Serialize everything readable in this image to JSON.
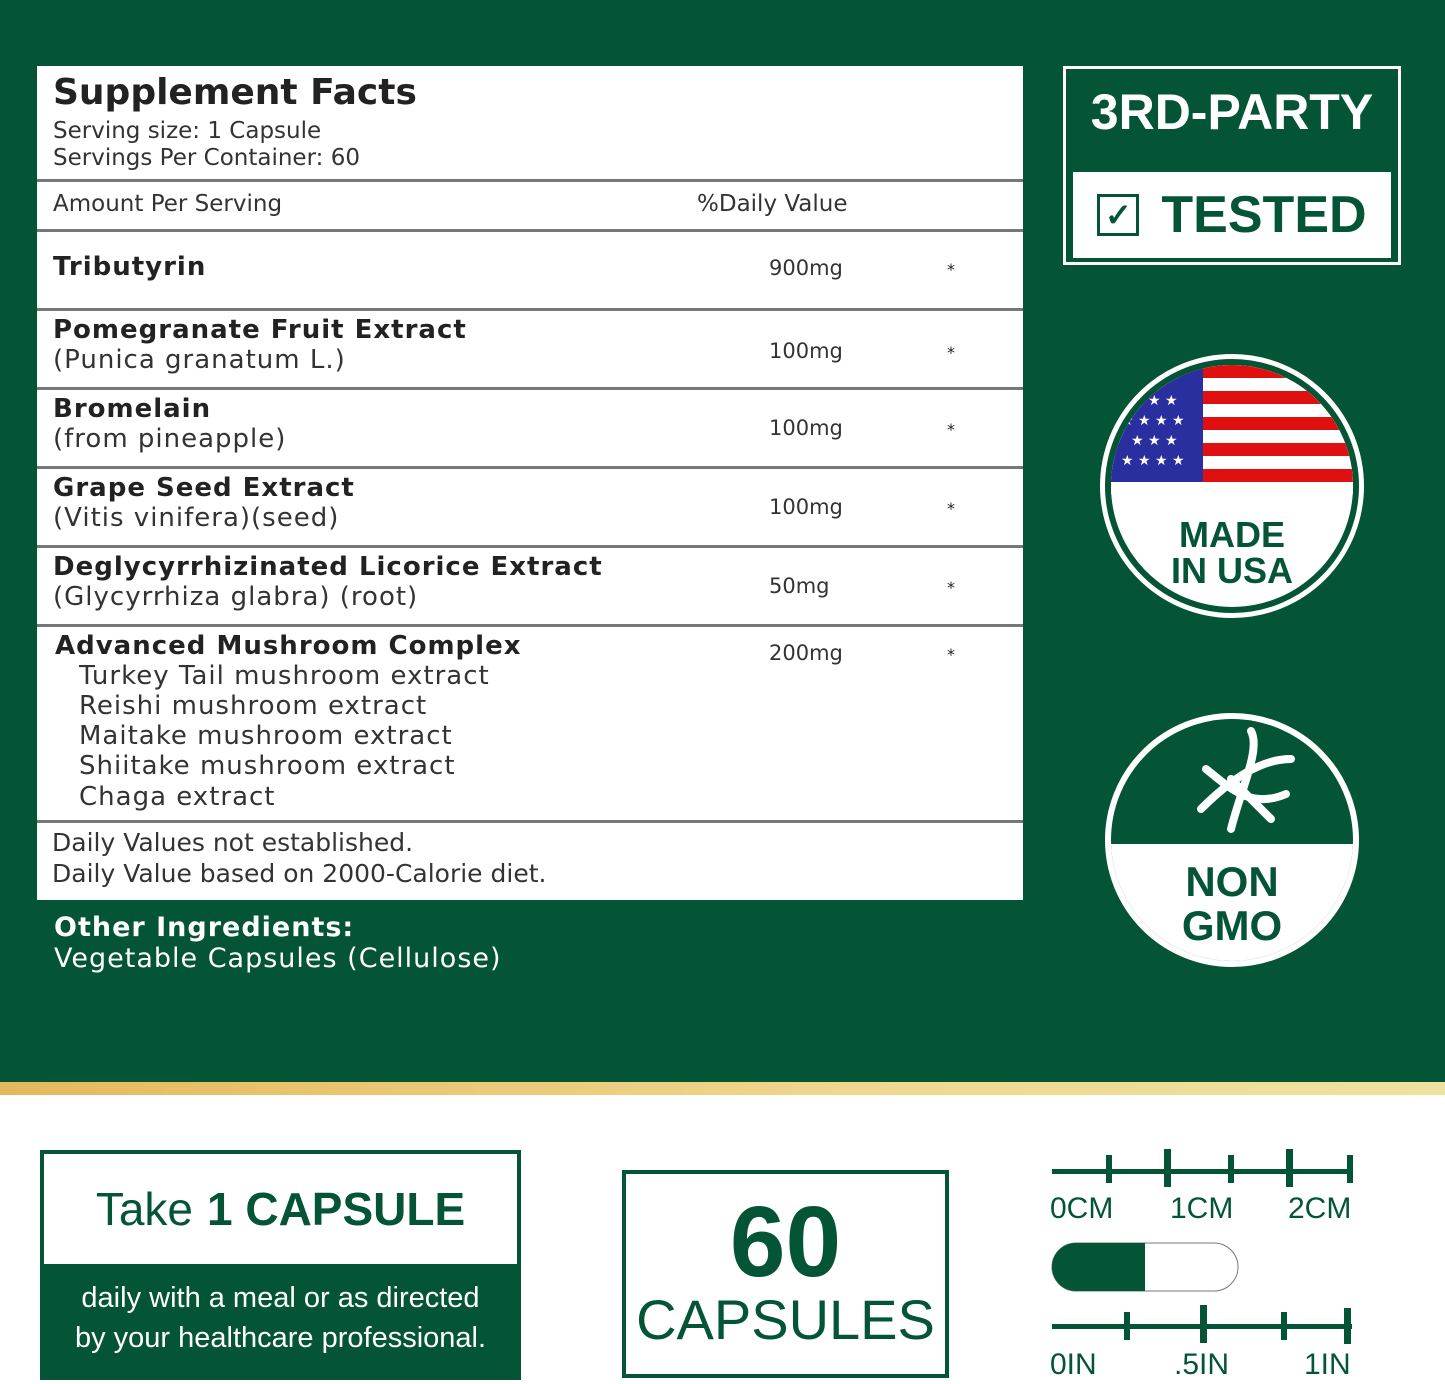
{
  "facts": {
    "title": "Supplement Facts",
    "serving_size": "Serving size: 1 Capsule",
    "servings": "Servings Per Container: 60",
    "amount_header": "Amount Per Serving",
    "dv_header": "%Daily Value",
    "rows": [
      {
        "name": "Tributyrin",
        "sub": "",
        "amount": "900mg",
        "dv": "*"
      },
      {
        "name": "Pomegranate Fruit Extract",
        "sub": "(Punica granatum L.)",
        "amount": "100mg",
        "dv": "*"
      },
      {
        "name": "Bromelain",
        "sub": "(from pineapple)",
        "amount": "100mg",
        "dv": "*"
      },
      {
        "name": "Grape Seed Extract",
        "sub": "(Vitis vinifera)(seed)",
        "amount": "100mg",
        "dv": "*"
      },
      {
        "name": "Deglycyrrhizinated Licorice Extract",
        "sub": "(Glycyrrhiza glabra) (root)",
        "amount": "50mg",
        "dv": "*"
      },
      {
        "name": "Advanced Mushroom Complex",
        "sub": "",
        "amount": "200mg",
        "dv": "*"
      }
    ],
    "mushrooms": [
      "Turkey Tail mushroom extract",
      "Reishi mushroom extract",
      "Maitake mushroom extract",
      "Shiitake mushroom extract",
      "Chaga extract"
    ],
    "foot1": "Daily Values not established.",
    "foot2": "Daily Value based on 2000-Calorie diet."
  },
  "other": {
    "label": "Other Ingredients:",
    "value": "Vegetable Capsules (Cellulose)"
  },
  "badges": {
    "tested_top": "3RD-PARTY",
    "tested_bottom": "TESTED",
    "usa_1": "MADE",
    "usa_2": "IN USA",
    "gmo_1": "NON",
    "gmo_2": "GMO"
  },
  "dosage": {
    "take": "Take",
    "bold": "1 CAPSULE",
    "line1": "daily with a meal or as directed",
    "line2": "by your healthcare professional."
  },
  "count": {
    "number": "60",
    "label": "CAPSULES"
  },
  "ruler": {
    "cm": [
      "0CM",
      "1CM",
      "2CM"
    ],
    "in": [
      "0IN",
      ".5IN",
      "1IN"
    ]
  },
  "colors": {
    "green": "#045535",
    "gold": "#e6c474"
  }
}
